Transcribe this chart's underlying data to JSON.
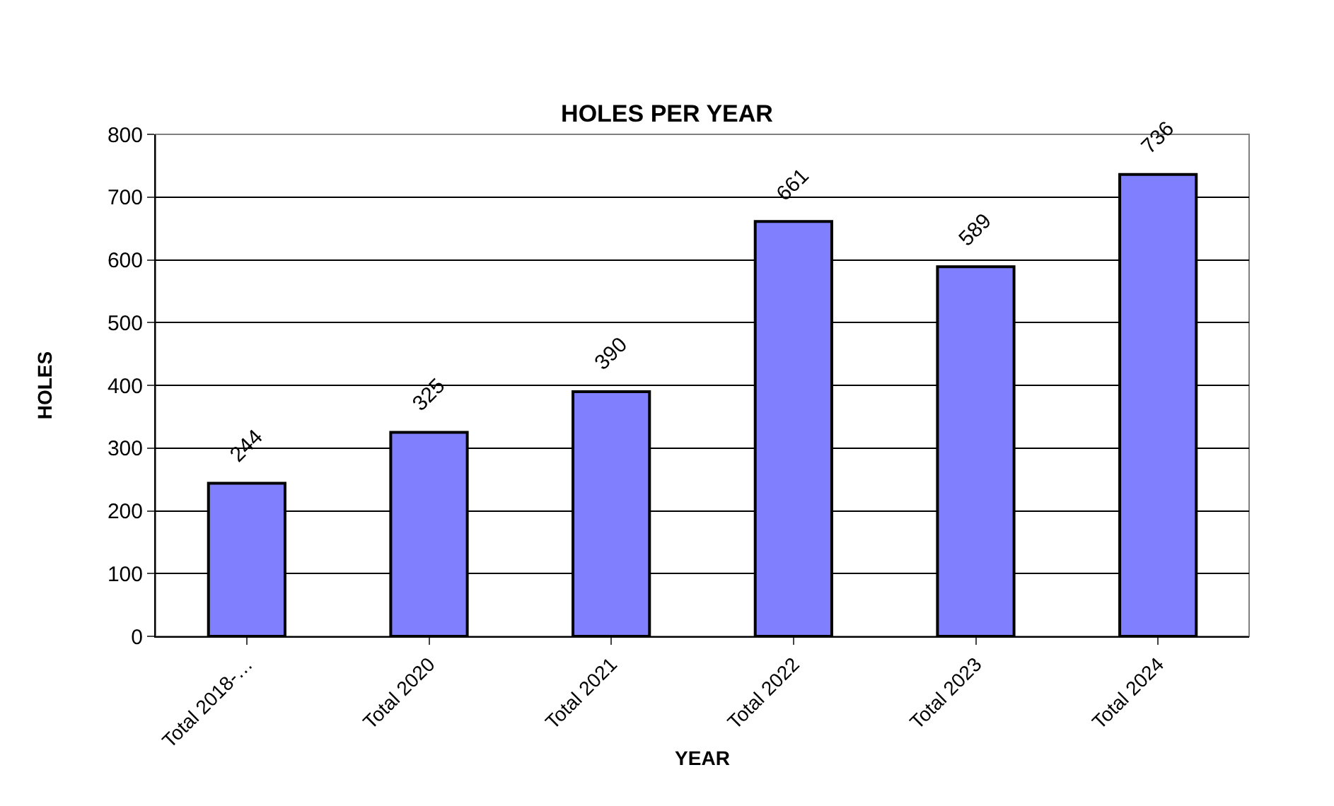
{
  "chart_data": {
    "type": "bar",
    "title": "HOLES PER YEAR",
    "xlabel": "YEAR",
    "ylabel": "HOLES",
    "categories": [
      "Total 2018-…",
      "Total 2020",
      "Total 2021",
      "Total 2022",
      "Total 2023",
      "Total 2024"
    ],
    "values": [
      244,
      325,
      390,
      661,
      589,
      736
    ],
    "color": "#8080ff",
    "ylim": [
      0,
      800
    ],
    "yticks": [
      0,
      100,
      200,
      300,
      400,
      500,
      600,
      700,
      800
    ],
    "grid": "y",
    "data_labels": true,
    "legend": false
  }
}
